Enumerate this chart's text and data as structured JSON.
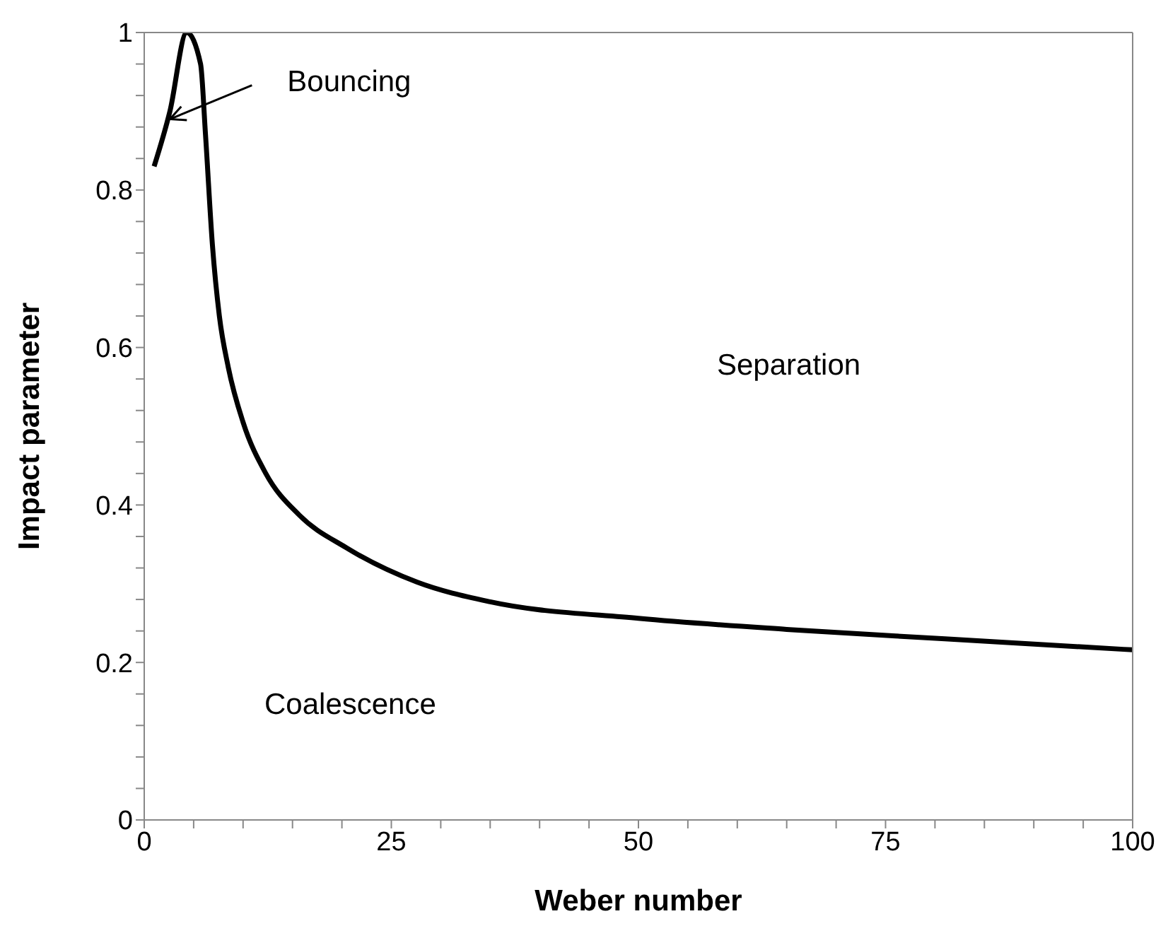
{
  "chart_data": {
    "type": "line",
    "xlabel": "Weber number",
    "ylabel": "Impact parameter",
    "x": [
      1.0,
      2.6,
      4.3,
      5.7,
      6.2,
      6.9,
      7.6,
      8.5,
      10,
      12.3,
      15.7,
      20.4,
      27.6,
      35,
      50,
      65,
      81,
      100
    ],
    "series": [
      {
        "color": "#000000",
        "values": [
          0.83,
          0.9,
          1.0,
          0.96,
          0.87,
          0.73,
          0.64,
          0.575,
          0.505,
          0.44,
          0.387,
          0.346,
          0.302,
          0.277,
          0.256,
          0.242,
          0.23,
          0.216
        ]
      }
    ],
    "xlim": [
      0,
      100
    ],
    "xticks": [
      0,
      {
        "value": 5,
        "label": null
      },
      {
        "value": 10,
        "label": null
      },
      {
        "value": 15,
        "label": null
      },
      {
        "value": 20,
        "label": null
      },
      25,
      {
        "value": 30,
        "label": null
      },
      {
        "value": 35,
        "label": null
      },
      {
        "value": 40,
        "label": null
      },
      {
        "value": 45,
        "label": null
      },
      50,
      {
        "value": 55,
        "label": null
      },
      {
        "value": 60,
        "label": null
      },
      {
        "value": 65,
        "label": null
      },
      {
        "value": 70,
        "label": null
      },
      75,
      {
        "value": 80,
        "label": null
      },
      {
        "value": 85,
        "label": null
      },
      {
        "value": 90,
        "label": null
      },
      {
        "value": 95,
        "label": null
      },
      100
    ],
    "ylim": [
      0,
      1
    ],
    "yticks": [
      0,
      {
        "value": 0.04,
        "label": null
      },
      {
        "value": 0.08,
        "label": null
      },
      {
        "value": 0.12,
        "label": null
      },
      {
        "value": 0.16,
        "label": null
      },
      0.2,
      {
        "value": 0.24,
        "label": null
      },
      {
        "value": 0.28,
        "label": null
      },
      {
        "value": 0.32,
        "label": null
      },
      {
        "value": 0.36,
        "label": null
      },
      0.4,
      {
        "value": 0.44,
        "label": null
      },
      {
        "value": 0.48,
        "label": null
      },
      {
        "value": 0.52,
        "label": null
      },
      {
        "value": 0.56,
        "label": null
      },
      0.6,
      {
        "value": 0.64,
        "label": null
      },
      {
        "value": 0.68,
        "label": null
      },
      {
        "value": 0.72,
        "label": null
      },
      {
        "value": 0.76,
        "label": null
      },
      0.8,
      {
        "value": 0.84,
        "label": null
      },
      {
        "value": 0.88,
        "label": null
      },
      {
        "value": 0.92,
        "label": null
      },
      {
        "value": 0.96,
        "label": null
      },
      1
    ],
    "grid": false,
    "legend": false,
    "marker": "none",
    "line_style": "solid",
    "annotations": [
      {
        "text": "Bouncing",
        "x": 2.6,
        "y": 0.89
      },
      "Separation",
      "Coalescence"
    ]
  }
}
